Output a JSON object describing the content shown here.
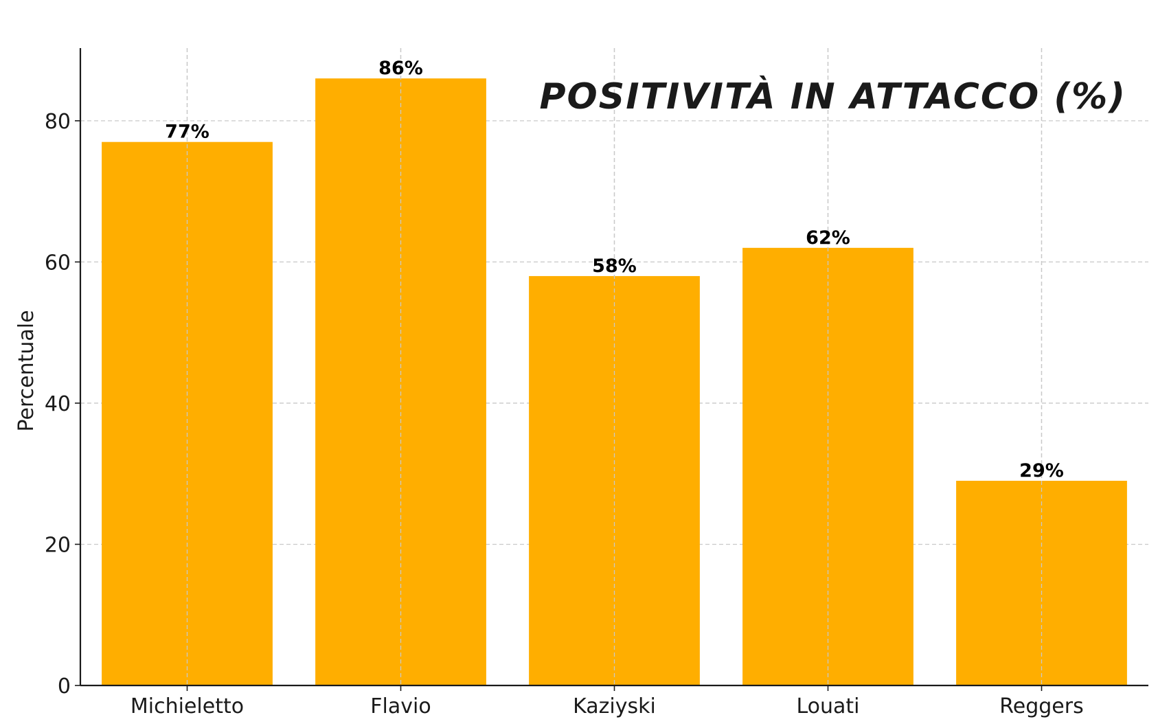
{
  "chart_data": {
    "type": "bar",
    "title": "POSITIVITÀ IN ATTACCO (%)",
    "xlabel": "",
    "ylabel": "Percentuale",
    "categories": [
      "Michieletto",
      "Flavio",
      "Kaziyski",
      "Louati",
      "Reggers"
    ],
    "values": [
      77,
      86,
      58,
      62,
      29
    ],
    "value_labels": [
      "77%",
      "86%",
      "58%",
      "62%",
      "29%"
    ],
    "ylim": [
      0,
      90.3
    ],
    "yticks": [
      0,
      20,
      40,
      60,
      80
    ],
    "grid": true,
    "bar_color": "#FFAE00",
    "legend": "none"
  }
}
